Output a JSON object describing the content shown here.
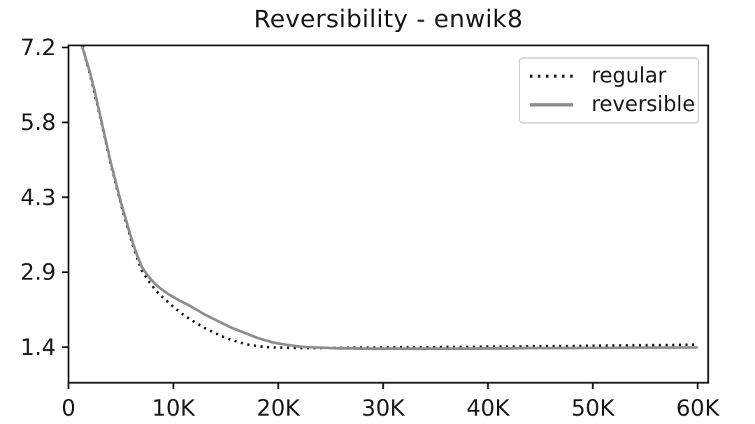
{
  "figure": {
    "title": "Reversibility - enwik8"
  },
  "legend": {
    "position": "upper right",
    "items": [
      {
        "label": "regular",
        "style": "dotted",
        "color": "#111111"
      },
      {
        "label": "reversible",
        "style": "solid",
        "color": "#8e8e8e"
      }
    ]
  },
  "colors": {
    "background": "#ffffff",
    "spine": "#1a1a1a",
    "text": "#1a1a1a",
    "regular_line": "#111111",
    "reversible_line": "#8e8e8e",
    "legend_border": "#d4d4d4"
  },
  "chart_data": {
    "type": "line",
    "title": "Reversibility - enwik8",
    "xlabel": "",
    "ylabel": "",
    "grid": false,
    "legend_position": "upper right",
    "xlim": [
      0,
      61000
    ],
    "ylim": [
      0.71,
      7.24
    ],
    "x_ticks": {
      "values": [
        0,
        10000,
        20000,
        30000,
        40000,
        50000,
        60000
      ],
      "labels": [
        "0",
        "10K",
        "20K",
        "30K",
        "40K",
        "50K",
        "60K"
      ]
    },
    "y_ticks": {
      "values": [
        7.2,
        5.75,
        4.3,
        2.85,
        1.4
      ],
      "labels": [
        "7.2",
        "5.8",
        "4.3",
        "2.9",
        "1.4"
      ]
    },
    "series": [
      {
        "name": "regular",
        "style": "dotted",
        "color": "#111111",
        "points": [
          [
            1350,
            7.24
          ],
          [
            1600,
            7.0
          ],
          [
            2000,
            6.72
          ],
          [
            2500,
            6.3
          ],
          [
            3000,
            5.87
          ],
          [
            3500,
            5.42
          ],
          [
            4000,
            4.97
          ],
          [
            4500,
            4.56
          ],
          [
            5000,
            4.17
          ],
          [
            5500,
            3.8
          ],
          [
            6000,
            3.46
          ],
          [
            6500,
            3.15
          ],
          [
            7000,
            2.88
          ],
          [
            7500,
            2.72
          ],
          [
            8000,
            2.58
          ],
          [
            8500,
            2.46
          ],
          [
            9000,
            2.36
          ],
          [
            9500,
            2.27
          ],
          [
            10000,
            2.18
          ],
          [
            10500,
            2.1
          ],
          [
            11000,
            2.02
          ],
          [
            11500,
            1.95
          ],
          [
            12000,
            1.89
          ],
          [
            12500,
            1.83
          ],
          [
            13000,
            1.77
          ],
          [
            13500,
            1.72
          ],
          [
            14000,
            1.67
          ],
          [
            14500,
            1.62
          ],
          [
            15000,
            1.58
          ],
          [
            15500,
            1.54
          ],
          [
            16000,
            1.51
          ],
          [
            16500,
            1.48
          ],
          [
            17000,
            1.455
          ],
          [
            17500,
            1.435
          ],
          [
            18000,
            1.42
          ],
          [
            18500,
            1.41
          ],
          [
            19000,
            1.4
          ],
          [
            20000,
            1.39
          ],
          [
            21000,
            1.385
          ],
          [
            22000,
            1.38
          ],
          [
            23000,
            1.38
          ],
          [
            24000,
            1.38
          ],
          [
            25000,
            1.385
          ],
          [
            26000,
            1.385
          ],
          [
            27000,
            1.39
          ],
          [
            28000,
            1.39
          ],
          [
            29000,
            1.39
          ],
          [
            30000,
            1.395
          ],
          [
            32000,
            1.4
          ],
          [
            34000,
            1.4
          ],
          [
            36000,
            1.405
          ],
          [
            38000,
            1.405
          ],
          [
            40000,
            1.41
          ],
          [
            42000,
            1.41
          ],
          [
            44000,
            1.415
          ],
          [
            46000,
            1.42
          ],
          [
            48000,
            1.42
          ],
          [
            50000,
            1.425
          ],
          [
            52000,
            1.43
          ],
          [
            54000,
            1.435
          ],
          [
            56000,
            1.44
          ],
          [
            58000,
            1.445
          ],
          [
            60000,
            1.45
          ]
        ]
      },
      {
        "name": "reversible",
        "style": "solid",
        "color": "#8e8e8e",
        "points": [
          [
            1250,
            7.24
          ],
          [
            1550,
            7.05
          ],
          [
            2000,
            6.75
          ],
          [
            2500,
            6.35
          ],
          [
            3000,
            5.9
          ],
          [
            3500,
            5.45
          ],
          [
            4000,
            5.0
          ],
          [
            4500,
            4.6
          ],
          [
            5000,
            4.2
          ],
          [
            5500,
            3.85
          ],
          [
            6000,
            3.5
          ],
          [
            6500,
            3.2
          ],
          [
            7000,
            2.95
          ],
          [
            7500,
            2.8
          ],
          [
            8000,
            2.68
          ],
          [
            8500,
            2.58
          ],
          [
            9000,
            2.5
          ],
          [
            9500,
            2.43
          ],
          [
            10000,
            2.37
          ],
          [
            10500,
            2.31
          ],
          [
            11000,
            2.26
          ],
          [
            11500,
            2.21
          ],
          [
            12000,
            2.15
          ],
          [
            12500,
            2.09
          ],
          [
            13000,
            2.03
          ],
          [
            13500,
            1.98
          ],
          [
            14000,
            1.93
          ],
          [
            14500,
            1.88
          ],
          [
            15000,
            1.83
          ],
          [
            15500,
            1.78
          ],
          [
            16000,
            1.74
          ],
          [
            16500,
            1.7
          ],
          [
            17000,
            1.66
          ],
          [
            17500,
            1.62
          ],
          [
            18000,
            1.58
          ],
          [
            18500,
            1.55
          ],
          [
            19000,
            1.52
          ],
          [
            19500,
            1.49
          ],
          [
            20000,
            1.47
          ],
          [
            21000,
            1.44
          ],
          [
            22000,
            1.41
          ],
          [
            23000,
            1.4
          ],
          [
            24000,
            1.39
          ],
          [
            25000,
            1.38
          ],
          [
            26000,
            1.375
          ],
          [
            27000,
            1.375
          ],
          [
            28000,
            1.37
          ],
          [
            30000,
            1.37
          ],
          [
            32000,
            1.37
          ],
          [
            34000,
            1.37
          ],
          [
            36000,
            1.37
          ],
          [
            38000,
            1.37
          ],
          [
            40000,
            1.375
          ],
          [
            42000,
            1.375
          ],
          [
            44000,
            1.38
          ],
          [
            46000,
            1.38
          ],
          [
            48000,
            1.38
          ],
          [
            50000,
            1.385
          ],
          [
            52000,
            1.385
          ],
          [
            54000,
            1.39
          ],
          [
            56000,
            1.39
          ],
          [
            58000,
            1.39
          ],
          [
            60000,
            1.395
          ]
        ]
      }
    ]
  }
}
